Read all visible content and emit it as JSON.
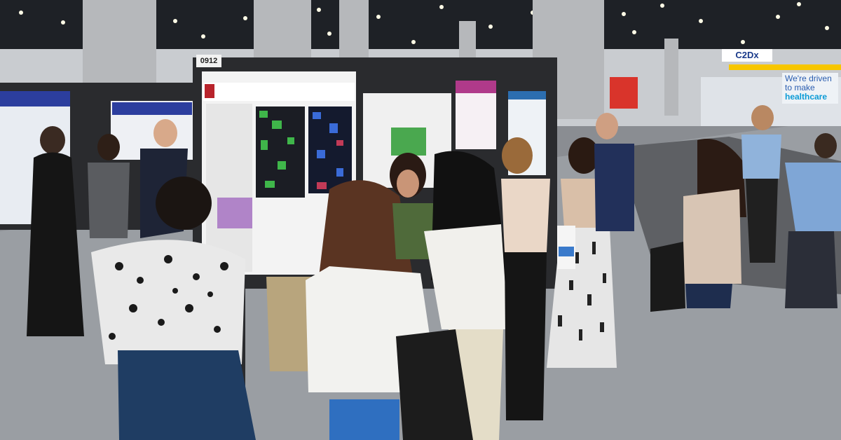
{
  "scene": {
    "board_number": "0912",
    "exhibitor_sign": "C2Dx",
    "banner_line1": "We're driven",
    "banner_line2": "to make",
    "banner_line3": "healthcare"
  },
  "colors": {
    "ceiling": "#1e2126",
    "floor": "#9a9ea3",
    "board": "#2a2b2e",
    "poster_bg": "#f3f3f3",
    "poster_header_blue": "#2c3e9e",
    "carpet": "#5e6064"
  }
}
